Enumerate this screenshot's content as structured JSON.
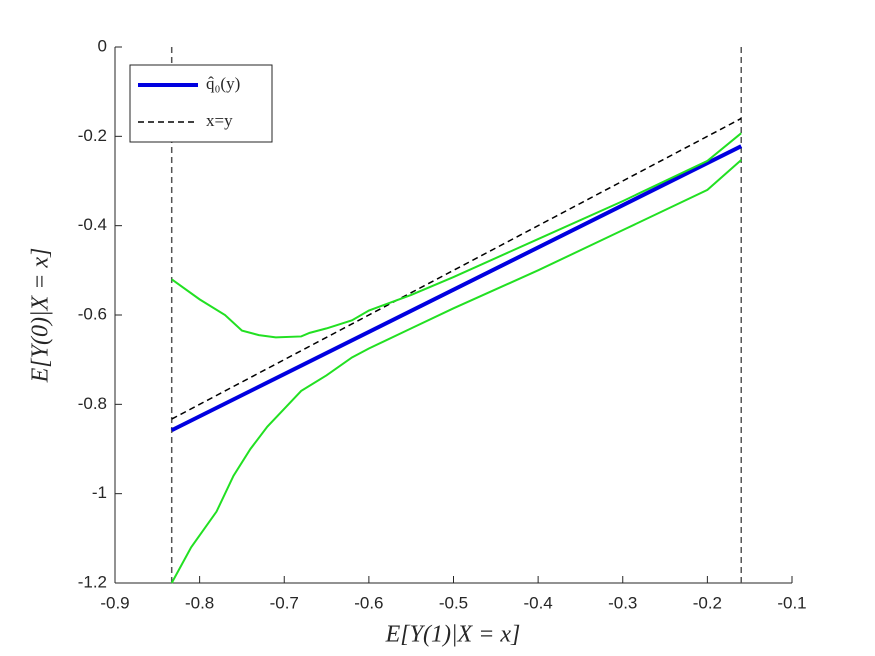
{
  "chart_data": {
    "type": "line",
    "xlabel": "E[Y(1)|X = x]",
    "ylabel": "E[Y(0)|X = x]",
    "xlim": [
      -0.9,
      -0.1
    ],
    "ylim": [
      -1.2,
      0
    ],
    "xticks": [
      -0.9,
      -0.8,
      -0.7,
      -0.6,
      -0.5,
      -0.4,
      -0.3,
      -0.2,
      -0.1
    ],
    "yticks": [
      -1.2,
      -1,
      -0.8,
      -0.6,
      -0.4,
      -0.2,
      0
    ],
    "vlines": [
      -0.833,
      -0.16
    ],
    "legend": "upper left",
    "series": [
      {
        "name": "q̂₀(y)",
        "color": "#0000e0",
        "width": 4,
        "x": [
          -0.833,
          -0.16
        ],
        "values": [
          -0.858,
          -0.222
        ]
      },
      {
        "name": "x=y",
        "color": "#000000",
        "width": 1.5,
        "dashed": true,
        "x": [
          -0.833,
          -0.16
        ],
        "values": [
          -0.833,
          -0.16
        ]
      },
      {
        "color": "#22e022",
        "width": 2,
        "x": [
          -0.833,
          -0.8,
          -0.77,
          -0.75,
          -0.73,
          -0.71,
          -0.68,
          -0.67,
          -0.65,
          -0.62,
          -0.6,
          -0.55,
          -0.5,
          -0.4,
          -0.3,
          -0.2,
          -0.16
        ],
        "values": [
          -0.52,
          -0.565,
          -0.6,
          -0.635,
          -0.645,
          -0.65,
          -0.648,
          -0.64,
          -0.63,
          -0.612,
          -0.59,
          -0.555,
          -0.515,
          -0.43,
          -0.345,
          -0.255,
          -0.193
        ]
      },
      {
        "color": "#22e022",
        "width": 2,
        "x": [
          -0.833,
          -0.81,
          -0.78,
          -0.76,
          -0.74,
          -0.72,
          -0.7,
          -0.68,
          -0.65,
          -0.62,
          -0.6,
          -0.55,
          -0.5,
          -0.4,
          -0.3,
          -0.2,
          -0.16
        ],
        "values": [
          -1.2,
          -1.12,
          -1.04,
          -0.96,
          -0.9,
          -0.85,
          -0.81,
          -0.77,
          -0.735,
          -0.695,
          -0.675,
          -0.63,
          -0.585,
          -0.5,
          -0.41,
          -0.32,
          -0.253
        ]
      }
    ]
  }
}
